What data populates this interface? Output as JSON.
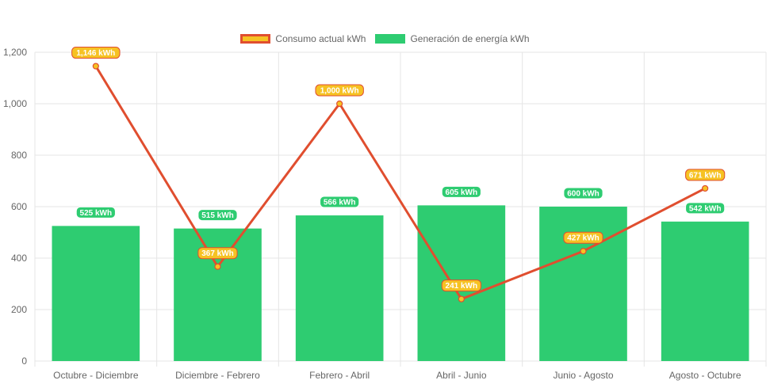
{
  "chart_data": {
    "type": "bar",
    "categories": [
      "Octubre - Diciembre",
      "Diciembre - Febrero",
      "Febrero - Abril",
      "Abril - Junio",
      "Junio - Agosto",
      "Agosto - Octubre"
    ],
    "series": [
      {
        "name": "Consumo actual kWh",
        "type": "line",
        "values": [
          1146,
          367,
          1000,
          241,
          427,
          671
        ],
        "labels": [
          "1,146 kWh",
          "367 kWh",
          "1,000 kWh",
          "241 kWh",
          "427 kWh",
          "671 kWh"
        ],
        "color": "#e04e2f",
        "fill_color": "#f6c223"
      },
      {
        "name": "Generación de energía kWh",
        "type": "bar",
        "values": [
          525,
          515,
          566,
          605,
          600,
          542
        ],
        "labels": [
          "525 kWh",
          "515 kWh",
          "566 kWh",
          "605 kWh",
          "600 kWh",
          "542 kWh"
        ],
        "color": "#2ecc71"
      }
    ],
    "yticks": [
      "0",
      "200",
      "400",
      "600",
      "800",
      "1,000",
      "1,200"
    ],
    "ylim": [
      0,
      1200
    ],
    "grid": true,
    "legend_position": "top"
  }
}
